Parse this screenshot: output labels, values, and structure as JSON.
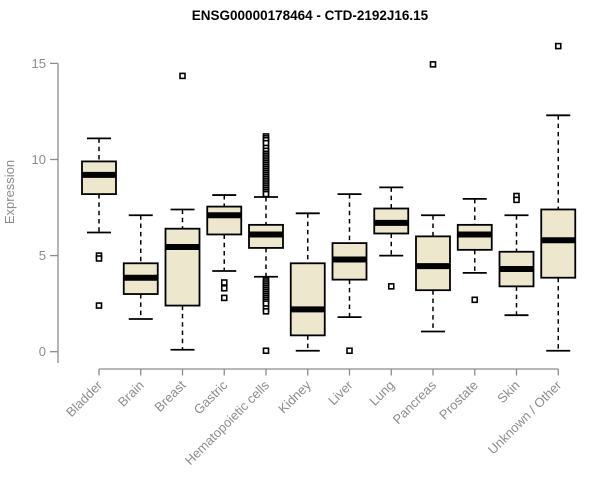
{
  "chart_data": {
    "type": "boxplot",
    "title": "ENSG00000178464 - CTD-2192J16.15",
    "ylabel": "Expression",
    "xlabel": "",
    "ylim": [
      0,
      15
    ],
    "yticks": [
      0,
      5,
      10,
      15
    ],
    "grid": false,
    "legend": null,
    "categories": [
      "Bladder",
      "Brain",
      "Breast",
      "Gastric",
      "Hematopoietic cells",
      "Kidney",
      "Liver",
      "Lung",
      "Pancreas",
      "Prostate",
      "Skin",
      "Unknown / Other"
    ],
    "series": [
      {
        "name": "Bladder",
        "whisker_low": 6.2,
        "q1": 8.2,
        "median": 9.2,
        "q3": 9.9,
        "whisker_high": 11.1,
        "outliers": [
          5.0,
          4.85,
          2.4
        ]
      },
      {
        "name": "Brain",
        "whisker_low": 1.7,
        "q1": 3.0,
        "median": 3.85,
        "q3": 4.6,
        "whisker_high": 7.1,
        "outliers": []
      },
      {
        "name": "Breast",
        "whisker_low": 0.1,
        "q1": 2.4,
        "median": 5.45,
        "q3": 6.4,
        "whisker_high": 7.4,
        "outliers": [
          14.35
        ]
      },
      {
        "name": "Gastric",
        "whisker_low": 4.2,
        "q1": 6.1,
        "median": 7.1,
        "q3": 7.55,
        "whisker_high": 8.15,
        "outliers": [
          3.6,
          3.3,
          2.8
        ]
      },
      {
        "name": "Hematopoietic cells",
        "whisker_low": 3.9,
        "q1": 5.4,
        "median": 6.1,
        "q3": 6.6,
        "whisker_high": 8.05,
        "outliers": [
          11.2,
          11.1,
          11.0,
          10.85,
          10.6,
          10.45,
          10.3,
          10.2,
          10.1,
          10.0,
          9.9,
          9.8,
          9.7,
          9.6,
          9.5,
          9.4,
          9.3,
          9.2,
          9.1,
          9.0,
          8.9,
          8.8,
          8.7,
          8.6,
          8.5,
          8.4,
          8.3,
          8.2,
          3.7,
          3.6,
          3.5,
          3.4,
          3.3,
          3.2,
          3.1,
          3.0,
          2.9,
          2.8,
          2.7,
          2.6,
          2.5,
          2.25,
          2.1,
          0.05
        ]
      },
      {
        "name": "Kidney",
        "whisker_low": 0.05,
        "q1": 0.85,
        "median": 2.2,
        "q3": 4.6,
        "whisker_high": 7.2,
        "outliers": []
      },
      {
        "name": "Liver",
        "whisker_low": 1.8,
        "q1": 3.75,
        "median": 4.8,
        "q3": 5.65,
        "whisker_high": 8.2,
        "outliers": [
          0.05
        ]
      },
      {
        "name": "Lung",
        "whisker_low": 5.0,
        "q1": 6.15,
        "median": 6.7,
        "q3": 7.45,
        "whisker_high": 8.55,
        "outliers": [
          3.4
        ]
      },
      {
        "name": "Pancreas",
        "whisker_low": 1.05,
        "q1": 3.2,
        "median": 4.45,
        "q3": 6.0,
        "whisker_high": 7.1,
        "outliers": [
          14.95
        ]
      },
      {
        "name": "Prostate",
        "whisker_low": 4.1,
        "q1": 5.3,
        "median": 6.1,
        "q3": 6.6,
        "whisker_high": 7.95,
        "outliers": [
          2.7
        ]
      },
      {
        "name": "Skin",
        "whisker_low": 1.9,
        "q1": 3.4,
        "median": 4.3,
        "q3": 5.2,
        "whisker_high": 7.1,
        "outliers": [
          8.1,
          7.9
        ]
      },
      {
        "name": "Unknown / Other",
        "whisker_low": 0.05,
        "q1": 3.85,
        "median": 5.8,
        "q3": 7.4,
        "whisker_high": 12.3,
        "outliers": [
          15.9
        ]
      }
    ]
  },
  "colors": {
    "box_fill": "#ede7ce",
    "box_stroke": "#000000",
    "median": "#000000",
    "whisker": "#000000",
    "outlier_stroke": "#000000",
    "outlier_fill": "#ffffff",
    "axis": "#8c8c8c",
    "tick_label": "#8c8c8c",
    "title": "#000000"
  }
}
